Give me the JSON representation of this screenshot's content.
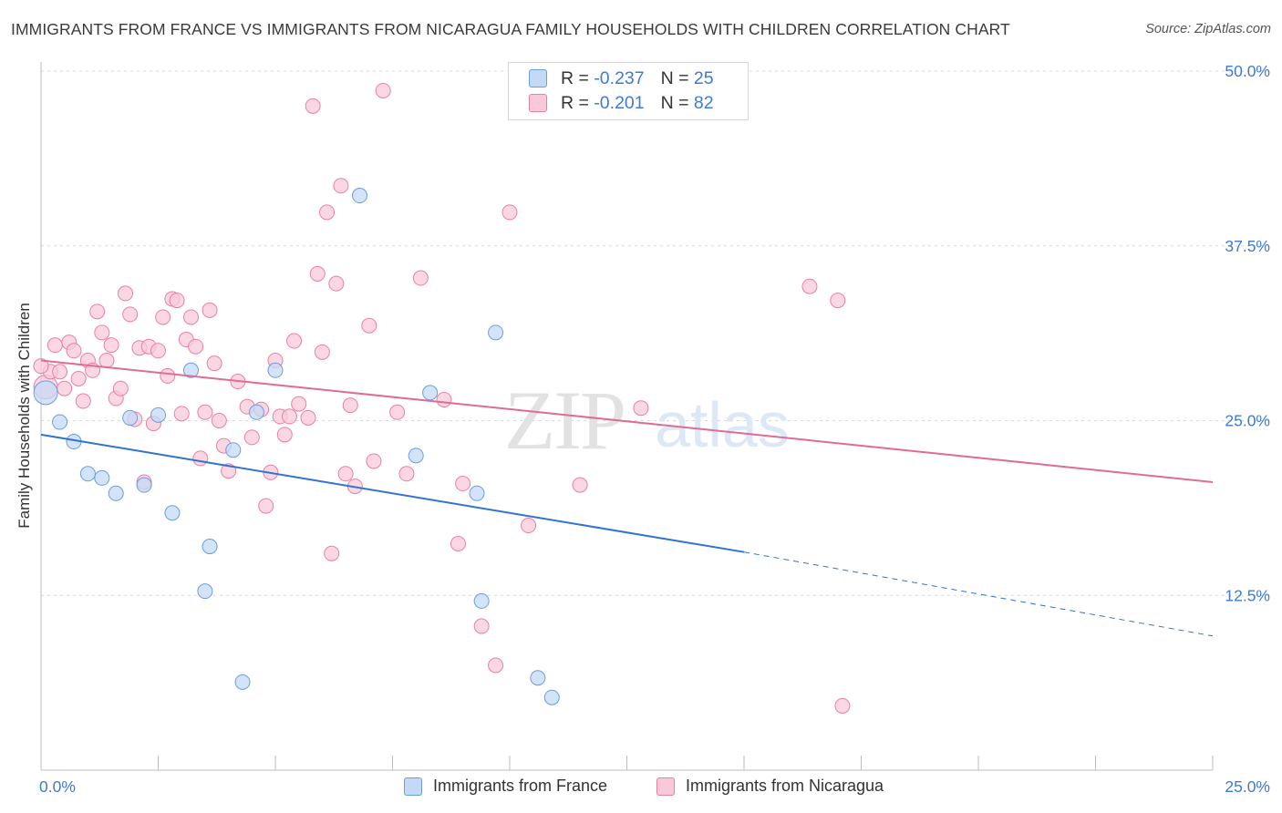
{
  "title": "IMMIGRANTS FROM FRANCE VS IMMIGRANTS FROM NICARAGUA FAMILY HOUSEHOLDS WITH CHILDREN CORRELATION CHART",
  "source": "Source: ZipAtlas.com",
  "watermark": {
    "zip": "ZIP",
    "atlas": "atlas"
  },
  "legend": {
    "france": {
      "r_label": "R = ",
      "r_value": "-0.237",
      "n_label": "N = ",
      "n_value": "25"
    },
    "nicaragua": {
      "r_label": "R = ",
      "r_value": "-0.201",
      "n_label": "N = ",
      "n_value": "82"
    }
  },
  "x_tick_labels": {
    "min": "0.0%",
    "max": "25.0%"
  },
  "colors": {
    "france": "#6c9de0",
    "france_fill": "#c4d9f5",
    "nicaragua": "#eb7fa2",
    "nicaragua_fill": "#f8cad9",
    "france_line": "#2f74d0",
    "nicaragua_line": "#e06b95",
    "tick": "#3e7bd2",
    "grid": "#d8d8d8"
  },
  "chart_data": {
    "type": "scatter",
    "xlabel": "",
    "ylabel": "Family Households with Children",
    "xlim": [
      0,
      25
    ],
    "ylim": [
      0,
      50
    ],
    "y_ticks": [
      12.5,
      25.0,
      37.5,
      50.0
    ],
    "y_tick_labels": [
      "12.5%",
      "25.0%",
      "37.5%",
      "50.0%"
    ],
    "grid": true,
    "legend_position": "top-center",
    "series": [
      {
        "name": "Immigrants from France",
        "points": [
          [
            0.1,
            27.0
          ],
          [
            0.4,
            24.9
          ],
          [
            0.7,
            23.5
          ],
          [
            1.0,
            21.2
          ],
          [
            1.3,
            20.9
          ],
          [
            1.6,
            19.8
          ],
          [
            1.9,
            25.2
          ],
          [
            2.2,
            20.4
          ],
          [
            2.5,
            25.4
          ],
          [
            2.8,
            18.4
          ],
          [
            3.2,
            28.6
          ],
          [
            3.5,
            12.8
          ],
          [
            3.6,
            16.0
          ],
          [
            4.1,
            22.9
          ],
          [
            4.3,
            6.3
          ],
          [
            4.6,
            25.6
          ],
          [
            5.0,
            28.6
          ],
          [
            6.8,
            41.1
          ],
          [
            8.0,
            22.5
          ],
          [
            8.3,
            27.0
          ],
          [
            9.3,
            19.8
          ],
          [
            9.4,
            12.1
          ],
          [
            9.7,
            31.3
          ],
          [
            10.6,
            6.6
          ],
          [
            10.9,
            5.2
          ]
        ]
      },
      {
        "name": "Immigrants from Nicaragua",
        "points": [
          [
            0.1,
            27.4
          ],
          [
            0.2,
            28.5
          ],
          [
            0.3,
            30.4
          ],
          [
            0.4,
            28.5
          ],
          [
            0.5,
            27.3
          ],
          [
            0.6,
            30.6
          ],
          [
            0.7,
            30.0
          ],
          [
            0.8,
            28.0
          ],
          [
            0.9,
            26.4
          ],
          [
            1.0,
            29.3
          ],
          [
            1.1,
            28.6
          ],
          [
            1.2,
            32.8
          ],
          [
            1.3,
            31.3
          ],
          [
            1.4,
            29.3
          ],
          [
            1.5,
            30.4
          ],
          [
            1.6,
            26.6
          ],
          [
            1.7,
            27.3
          ],
          [
            1.8,
            34.1
          ],
          [
            1.9,
            32.6
          ],
          [
            2.0,
            25.1
          ],
          [
            2.1,
            30.2
          ],
          [
            2.2,
            20.6
          ],
          [
            2.3,
            30.3
          ],
          [
            2.4,
            24.8
          ],
          [
            2.5,
            30.0
          ],
          [
            2.6,
            32.4
          ],
          [
            2.7,
            28.2
          ],
          [
            2.8,
            33.7
          ],
          [
            2.9,
            33.6
          ],
          [
            3.0,
            25.5
          ],
          [
            3.1,
            30.8
          ],
          [
            3.2,
            32.4
          ],
          [
            3.3,
            30.3
          ],
          [
            3.4,
            22.3
          ],
          [
            3.5,
            25.6
          ],
          [
            3.6,
            32.9
          ],
          [
            3.7,
            29.1
          ],
          [
            3.8,
            25.0
          ],
          [
            3.9,
            23.2
          ],
          [
            4.0,
            21.4
          ],
          [
            4.2,
            27.8
          ],
          [
            4.4,
            26.0
          ],
          [
            4.5,
            23.8
          ],
          [
            4.7,
            25.8
          ],
          [
            4.8,
            18.9
          ],
          [
            4.9,
            21.3
          ],
          [
            5.0,
            29.3
          ],
          [
            5.1,
            25.3
          ],
          [
            5.2,
            24.0
          ],
          [
            5.3,
            25.3
          ],
          [
            5.4,
            30.7
          ],
          [
            5.5,
            26.2
          ],
          [
            5.7,
            25.2
          ],
          [
            5.8,
            47.5
          ],
          [
            5.9,
            35.5
          ],
          [
            6.0,
            29.9
          ],
          [
            6.1,
            39.9
          ],
          [
            6.2,
            15.5
          ],
          [
            6.3,
            34.8
          ],
          [
            6.4,
            41.8
          ],
          [
            6.5,
            21.2
          ],
          [
            6.6,
            26.1
          ],
          [
            6.7,
            20.3
          ],
          [
            7.0,
            31.8
          ],
          [
            7.1,
            22.1
          ],
          [
            7.3,
            48.6
          ],
          [
            7.6,
            25.6
          ],
          [
            7.8,
            21.2
          ],
          [
            8.1,
            35.2
          ],
          [
            8.6,
            26.5
          ],
          [
            8.9,
            16.2
          ],
          [
            9.0,
            20.5
          ],
          [
            9.4,
            10.3
          ],
          [
            9.7,
            7.5
          ],
          [
            10.0,
            39.9
          ],
          [
            10.4,
            17.5
          ],
          [
            11.5,
            20.4
          ],
          [
            12.8,
            25.9
          ],
          [
            16.4,
            34.6
          ],
          [
            17.0,
            33.6
          ],
          [
            17.1,
            4.6
          ],
          [
            0.0,
            28.9
          ]
        ]
      }
    ],
    "trendlines": [
      {
        "series": "Immigrants from France",
        "solid": [
          [
            0,
            24.0
          ],
          [
            15,
            15.6
          ]
        ],
        "dashed": [
          [
            15,
            15.6
          ],
          [
            25,
            9.6
          ]
        ]
      },
      {
        "series": "Immigrants from Nicaragua",
        "solid": [
          [
            0,
            29.3
          ],
          [
            25,
            20.6
          ]
        ]
      }
    ]
  }
}
